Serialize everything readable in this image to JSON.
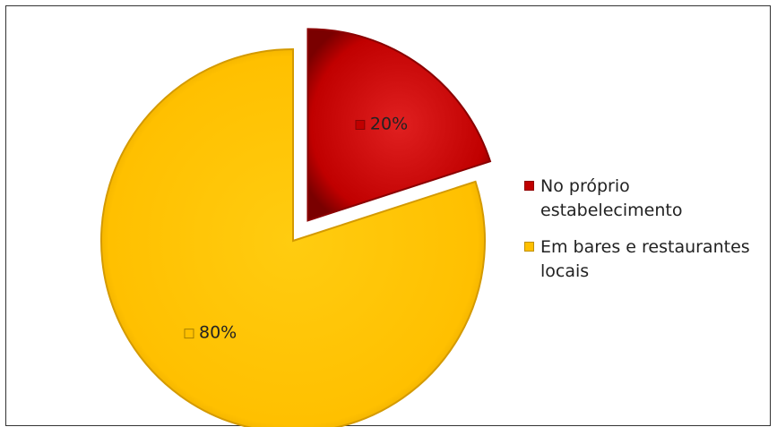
{
  "chart_data": {
    "type": "pie",
    "title": "",
    "categories": [
      "No próprio estabelecimento",
      "Em bares e restaurantes locais"
    ],
    "values": [
      20,
      80
    ],
    "labels": [
      "20%",
      "80%"
    ],
    "colors": [
      "#c00000",
      "#ffc000"
    ],
    "exploded": [
      true,
      false
    ],
    "legend_position": "right"
  },
  "legend": {
    "items": [
      {
        "label": "No próprio estabelecimento",
        "color": "#c00000"
      },
      {
        "label": "Em bares e restaurantes locais",
        "color": "#ffc000"
      }
    ]
  }
}
